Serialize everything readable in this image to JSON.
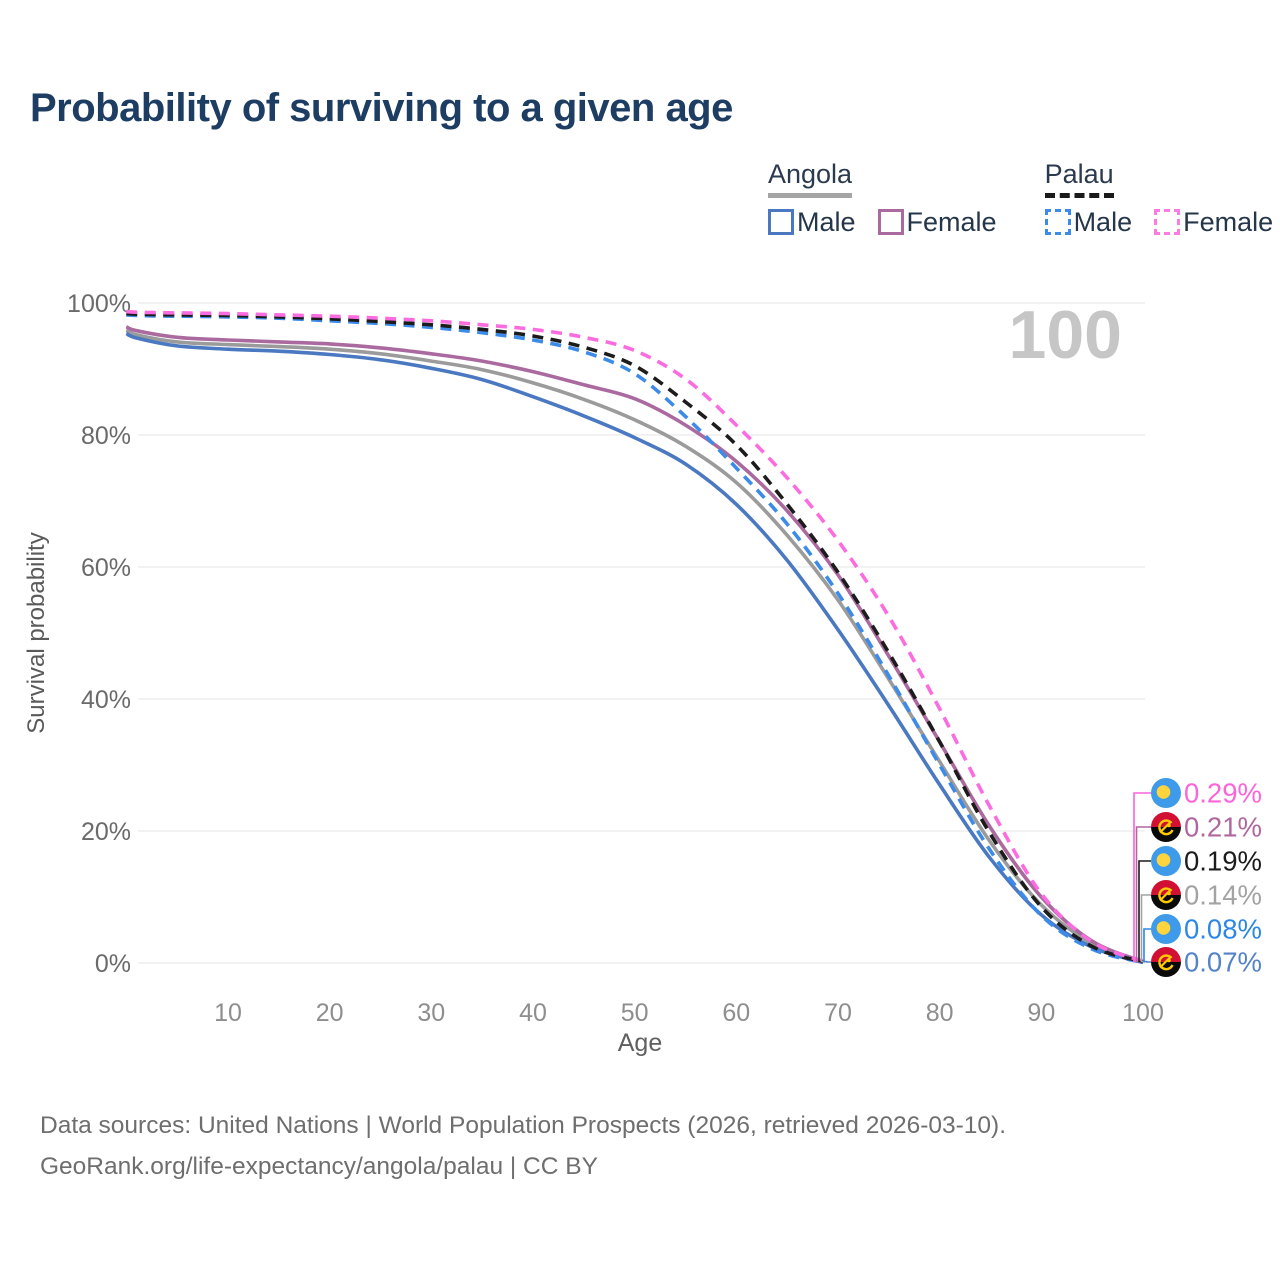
{
  "header": {
    "title": "Probability of surviving to a given age"
  },
  "legend": {
    "groups": [
      {
        "label": "Angola",
        "underline_style": "solid",
        "underline_color": "#a5a5a5",
        "items": [
          {
            "label": "Male",
            "color": "#4a79c2",
            "dash": false
          },
          {
            "label": "Female",
            "color": "#ab6a9f",
            "dash": false
          }
        ]
      },
      {
        "label": "Palau",
        "underline_style": "dashed",
        "underline_color": "#1a1a1a",
        "items": [
          {
            "label": "Male",
            "color": "#3d8be9",
            "dash": true
          },
          {
            "label": "Female",
            "color": "#fb7be0",
            "dash": true
          }
        ]
      }
    ]
  },
  "chart_data": {
    "type": "line",
    "title": "Probability of surviving to a given age",
    "xlabel": "Age",
    "ylabel": "Survival probability",
    "xlim": [
      0,
      100
    ],
    "ylim": [
      0,
      100
    ],
    "grid": "horizontal-only",
    "age_marker": "100",
    "x_ticks": [
      10,
      20,
      30,
      40,
      50,
      60,
      70,
      80,
      90,
      100
    ],
    "y_ticks": [
      "0%",
      "20%",
      "40%",
      "60%",
      "80%",
      "100%"
    ],
    "x": [
      0,
      1,
      5,
      10,
      15,
      20,
      25,
      30,
      35,
      40,
      45,
      50,
      55,
      60,
      65,
      70,
      75,
      80,
      85,
      90,
      95,
      100
    ],
    "series": [
      {
        "id": "angola-both",
        "name": "Angola (both sexes)",
        "color": "#9b9b9b",
        "style": "solid",
        "values": [
          95.9,
          95.2,
          94.1,
          93.7,
          93.4,
          93.0,
          92.3,
          91.2,
          89.9,
          87.9,
          85.4,
          82.3,
          78.3,
          72.8,
          64.8,
          55.0,
          43.0,
          30.5,
          18.3,
          8.8,
          2.9,
          0.14
        ],
        "value_at_100": "0.14%"
      },
      {
        "id": "angola-male",
        "name": "Angola Male",
        "color": "#4a79c2",
        "style": "solid",
        "values": [
          95.4,
          94.7,
          93.5,
          93.0,
          92.7,
          92.2,
          91.4,
          90.1,
          88.4,
          85.8,
          82.9,
          79.6,
          75.6,
          69.5,
          61.0,
          50.5,
          39.0,
          27.0,
          15.8,
          7.3,
          2.4,
          0.07
        ],
        "value_at_100": "0.07%"
      },
      {
        "id": "angola-female",
        "name": "Angola Female",
        "color": "#ab6a9f",
        "style": "solid",
        "values": [
          96.4,
          95.8,
          94.8,
          94.4,
          94.1,
          93.8,
          93.2,
          92.3,
          91.2,
          89.6,
          87.6,
          85.5,
          81.5,
          76.0,
          68.5,
          58.8,
          46.5,
          33.5,
          20.5,
          10.0,
          3.3,
          0.21
        ],
        "value_at_100": "0.21%"
      },
      {
        "id": "palau-male",
        "name": "Palau Male",
        "color": "#3d8be9",
        "style": "dashed",
        "values": [
          98.2,
          98.1,
          98.0,
          97.9,
          97.7,
          97.3,
          96.9,
          96.3,
          95.5,
          94.4,
          92.6,
          89.3,
          82.8,
          75.0,
          66.5,
          56.0,
          43.5,
          30.0,
          17.0,
          7.2,
          2.1,
          0.08
        ],
        "value_at_100": "0.08%"
      },
      {
        "id": "palau-both",
        "name": "Palau (both sexes)",
        "color": "#1c1c1c",
        "style": "dashed",
        "values": [
          98.4,
          98.3,
          98.2,
          98.1,
          97.9,
          97.6,
          97.2,
          96.7,
          96.0,
          95.0,
          93.3,
          90.5,
          85.0,
          78.5,
          69.5,
          59.2,
          47.0,
          33.5,
          19.5,
          8.5,
          2.5,
          0.19
        ],
        "value_at_100": "0.19%"
      },
      {
        "id": "palau-female",
        "name": "Palau Female",
        "color": "#fb6ce0",
        "style": "dashed",
        "values": [
          98.7,
          98.6,
          98.5,
          98.4,
          98.2,
          98.0,
          97.7,
          97.3,
          96.7,
          96.0,
          94.8,
          92.8,
          88.5,
          81.5,
          73.5,
          64.0,
          52.5,
          38.5,
          23.5,
          10.5,
          3.2,
          0.29
        ],
        "value_at_100": "0.29%"
      }
    ],
    "callouts": [
      {
        "label": "0.29%",
        "color": "#fc64d8",
        "flag": "palau",
        "series": "Palau Female"
      },
      {
        "label": "0.21%",
        "color": "#b0679f",
        "flag": "angola",
        "series": "Angola Female"
      },
      {
        "label": "0.19%",
        "color": "#1c1c1c",
        "flag": "palau",
        "series": "Palau (both sexes)"
      },
      {
        "label": "0.14%",
        "color": "#a3a3a3",
        "flag": "angola",
        "series": "Angola (both sexes)"
      },
      {
        "label": "0.08%",
        "color": "#2d87e5",
        "flag": "palau",
        "series": "Palau Male"
      },
      {
        "label": "0.07%",
        "color": "#5583c7",
        "flag": "angola",
        "series": "Angola Male"
      }
    ],
    "flag_colors": {
      "palau": {
        "field": "#3e9be9",
        "disc": "#ffd43d"
      },
      "angola": {
        "top": "#d21034",
        "bottom": "#0a0a0a",
        "emblem": "#ffcb00"
      }
    }
  },
  "footer": {
    "line1": "Data sources: United Nations | World Population Prospects (2026, retrieved 2026-03-10).",
    "line2": "GeoRank.org/life-expectancy/angola/palau | CC BY"
  }
}
